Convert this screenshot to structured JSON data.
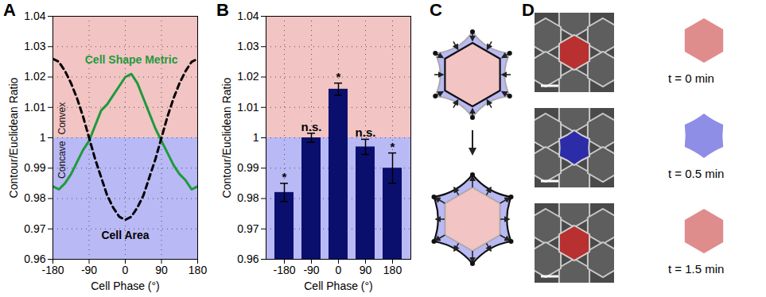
{
  "chart_data": [
    {
      "panel_label": "A",
      "type": "line",
      "x": [
        -180,
        -165,
        -150,
        -135,
        -120,
        -105,
        -90,
        -75,
        -60,
        -45,
        -30,
        -15,
        0,
        15,
        30,
        45,
        60,
        75,
        90,
        105,
        120,
        135,
        150,
        165,
        180
      ],
      "series": [
        {
          "name": "Cell Shape Metric",
          "color": "#1f9a3c",
          "line_style": "solid",
          "values": [
            0.984,
            0.983,
            0.985,
            0.988,
            0.992,
            0.996,
            0.999,
            1.004,
            1.009,
            1.011,
            1.014,
            1.017,
            1.02,
            1.021,
            1.018,
            1.013,
            1.008,
            1.003,
            0.999,
            0.995,
            0.991,
            0.988,
            0.986,
            0.983,
            0.984
          ]
        },
        {
          "name": "Cell Area",
          "color": "#000000",
          "line_style": "dashed",
          "values": [
            1.026,
            1.025,
            1.022,
            1.018,
            1.013,
            1.007,
            1.0,
            0.993,
            0.987,
            0.981,
            0.977,
            0.974,
            0.973,
            0.974,
            0.977,
            0.981,
            0.987,
            0.993,
            1.0,
            1.007,
            1.013,
            1.018,
            1.022,
            1.025,
            1.026
          ]
        }
      ],
      "regions": [
        {
          "label": "Convex",
          "y": [
            1,
            1.04
          ],
          "color": "#f2c4c4"
        },
        {
          "label": "Concave",
          "y": [
            0.96,
            1
          ],
          "color": "#b9b9f5"
        }
      ],
      "x_label": "Cell Phase (°)",
      "y_label": "Contour/Euclidean Ratio",
      "xlim": [
        -180,
        180
      ],
      "xticks": [
        -180,
        -90,
        0,
        90,
        180
      ],
      "ylim": [
        0.96,
        1.04
      ],
      "yticks": [
        0.96,
        0.97,
        0.98,
        0.99,
        1,
        1.01,
        1.02,
        1.03,
        1.04
      ],
      "grid": true
    },
    {
      "panel_label": "B",
      "type": "bar",
      "categories": [
        -180,
        -90,
        0,
        90,
        180
      ],
      "values": [
        0.982,
        1.0,
        1.016,
        0.997,
        0.99
      ],
      "errors": [
        0.003,
        0.0015,
        0.002,
        0.0025,
        0.005
      ],
      "annotations": [
        "*",
        "n.s.",
        "*",
        "n.s.",
        "*"
      ],
      "color": "#0a0f6e",
      "regions": [
        {
          "y": [
            1,
            1.04
          ],
          "color": "#f2c4c4"
        },
        {
          "y": [
            0.96,
            1
          ],
          "color": "#b9b9f5"
        }
      ],
      "x_label": "Cell Phase (°)",
      "y_label": "Contour/Euclidean Ratio",
      "ylim": [
        0.96,
        1.04
      ],
      "yticks": [
        0.96,
        0.97,
        0.98,
        0.99,
        1,
        1.01,
        1.02,
        1.03,
        1.04
      ],
      "grid": true
    }
  ],
  "diagram": {
    "panel_label": "C"
  },
  "images": {
    "panel_label": "D",
    "frames": [
      {
        "label": "t = 0 min",
        "color": "#b83030",
        "shape_color": "#df8c8c"
      },
      {
        "label": "t = 0.5 min",
        "color": "#2c2ca8",
        "shape_color": "#8e8ee6"
      },
      {
        "label": "t = 1.5 min",
        "color": "#b83030",
        "shape_color": "#df8c8c"
      }
    ]
  }
}
